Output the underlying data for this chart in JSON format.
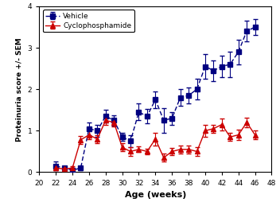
{
  "vehicle_x": [
    22,
    23,
    24,
    25,
    26,
    27,
    28,
    29,
    30,
    31,
    32,
    33,
    34,
    35,
    36,
    37,
    38,
    39,
    40,
    41,
    42,
    43,
    44,
    45,
    46
  ],
  "vehicle_y": [
    0.15,
    0.1,
    0.05,
    0.1,
    1.05,
    1.0,
    1.35,
    1.25,
    0.85,
    0.75,
    1.45,
    1.35,
    1.75,
    1.25,
    1.3,
    1.8,
    1.85,
    2.0,
    2.55,
    2.45,
    2.55,
    2.6,
    2.9,
    3.4,
    3.5
  ],
  "vehicle_err": [
    0.1,
    0.05,
    0.05,
    0.05,
    0.15,
    0.15,
    0.15,
    0.12,
    0.1,
    0.15,
    0.2,
    0.18,
    0.2,
    0.3,
    0.15,
    0.2,
    0.2,
    0.25,
    0.3,
    0.25,
    0.25,
    0.3,
    0.3,
    0.25,
    0.2
  ],
  "cyclo_x": [
    22,
    23,
    24,
    25,
    26,
    27,
    28,
    29,
    30,
    31,
    32,
    33,
    34,
    35,
    36,
    37,
    38,
    39,
    40,
    41,
    42,
    43,
    44,
    45,
    46
  ],
  "cyclo_y": [
    0.1,
    0.08,
    0.1,
    0.78,
    0.9,
    0.8,
    1.25,
    1.2,
    0.6,
    0.5,
    0.55,
    0.5,
    0.8,
    0.35,
    0.5,
    0.55,
    0.55,
    0.5,
    1.0,
    1.05,
    1.15,
    0.85,
    0.9,
    1.2,
    0.9
  ],
  "cyclo_err": [
    0.05,
    0.04,
    0.05,
    0.1,
    0.1,
    0.1,
    0.1,
    0.1,
    0.1,
    0.1,
    0.07,
    0.07,
    0.15,
    0.1,
    0.08,
    0.1,
    0.1,
    0.1,
    0.15,
    0.1,
    0.15,
    0.1,
    0.12,
    0.12,
    0.1
  ],
  "vehicle_color": "#000080",
  "cyclo_color": "#cc0000",
  "xlabel": "Age (weeks)",
  "ylabel": "Proteinuria score +/- SEM",
  "xlim": [
    20,
    48
  ],
  "ylim": [
    0,
    4
  ],
  "xticks": [
    20,
    22,
    24,
    26,
    28,
    30,
    32,
    34,
    36,
    38,
    40,
    42,
    44,
    46,
    48
  ],
  "yticks": [
    0,
    1,
    2,
    3,
    4
  ]
}
